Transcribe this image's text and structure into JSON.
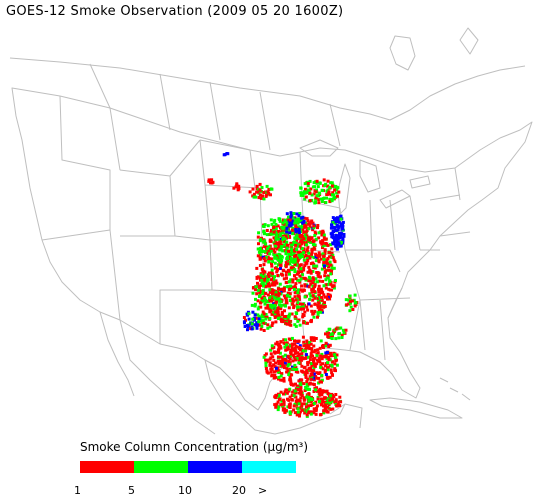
{
  "title": "GOES-12 Smoke Observation (2009 05 20  1600Z)",
  "legend": {
    "title": "Smoke Column Concentration (μg/m³)",
    "bins": [
      {
        "color": "#ff0000",
        "from": "1",
        "to": "5"
      },
      {
        "color": "#00ff00",
        "from": "5",
        "to": "10"
      },
      {
        "color": "#0000ff",
        "from": "10",
        "to": "20"
      },
      {
        "color": "#00ffff",
        "from": "20",
        "to": ">"
      }
    ],
    "tick_labels": [
      "1",
      "5",
      "10",
      "20",
      ">"
    ]
  },
  "map": {
    "region": "Contiguous United States with southern Canada and northern Mexico",
    "boundary_color": "#bfbfbf"
  }
}
